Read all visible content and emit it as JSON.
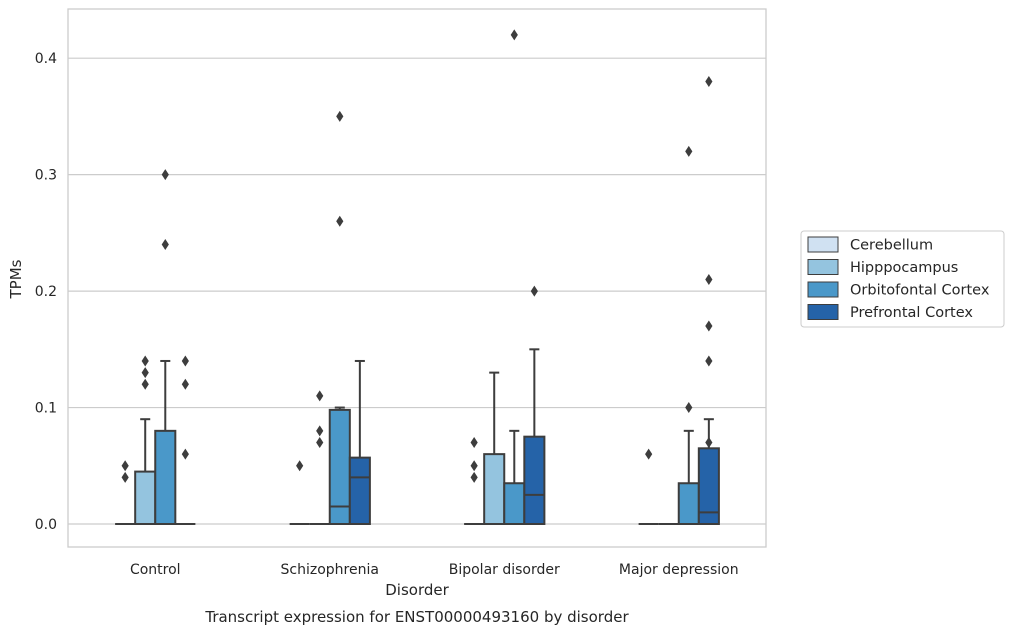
{
  "chart_data": {
    "type": "box",
    "title": "",
    "caption": "Transcript expression for ENST00000493160 by disorder",
    "xlabel": "Disorder",
    "ylabel": "TPMs",
    "ylim": [
      -0.02,
      0.442
    ],
    "yticks": [
      "0.0",
      "0.1",
      "0.2",
      "0.3",
      "0.4"
    ],
    "grid": "horizontal",
    "legend_position": "right",
    "categories": [
      "Control",
      "Schizophrenia",
      "Bipolar disorder",
      "Major depression"
    ],
    "series": [
      {
        "name": "Cerebellum",
        "color": "#d0e1f2",
        "boxes": [
          {
            "q1": 0,
            "median": 0,
            "q3": 0,
            "wlo": 0,
            "whi": 0,
            "outliers": [
              0.04,
              0.05
            ]
          },
          {
            "q1": 0,
            "median": 0,
            "q3": 0,
            "wlo": 0,
            "whi": 0,
            "outliers": [
              0.05
            ]
          },
          {
            "q1": 0,
            "median": 0,
            "q3": 0,
            "wlo": 0,
            "whi": 0,
            "outliers": [
              0.04,
              0.05,
              0.07
            ]
          },
          {
            "q1": 0,
            "median": 0,
            "q3": 0,
            "wlo": 0,
            "whi": 0,
            "outliers": [
              0.06
            ]
          }
        ]
      },
      {
        "name": "Hipppocampus",
        "color": "#94c4df",
        "boxes": [
          {
            "q1": 0,
            "median": 0,
            "q3": 0.045,
            "wlo": 0,
            "whi": 0.09,
            "outliers": [
              0.12,
              0.13,
              0.14
            ]
          },
          {
            "q1": 0,
            "median": 0,
            "q3": 0,
            "wlo": 0,
            "whi": 0,
            "outliers": [
              0.07,
              0.08,
              0.11
            ]
          },
          {
            "q1": 0,
            "median": 0,
            "q3": 0.06,
            "wlo": 0,
            "whi": 0.13,
            "outliers": []
          },
          {
            "q1": 0,
            "median": 0,
            "q3": 0,
            "wlo": 0,
            "whi": 0,
            "outliers": []
          }
        ]
      },
      {
        "name": "Orbitofontal Cortex",
        "color": "#4a98c9",
        "boxes": [
          {
            "q1": 0,
            "median": 0,
            "q3": 0.08,
            "wlo": 0,
            "whi": 0.14,
            "outliers": [
              0.24,
              0.3
            ]
          },
          {
            "q1": 0,
            "median": 0.015,
            "q3": 0.098,
            "wlo": 0,
            "whi": 0.1,
            "outliers": [
              0.26,
              0.35
            ]
          },
          {
            "q1": 0,
            "median": 0,
            "q3": 0.035,
            "wlo": 0,
            "whi": 0.08,
            "outliers": [
              0.42
            ]
          },
          {
            "q1": 0,
            "median": 0,
            "q3": 0.035,
            "wlo": 0,
            "whi": 0.08,
            "outliers": [
              0.1,
              0.32
            ]
          }
        ]
      },
      {
        "name": "Prefrontal Cortex",
        "color": "#2563a8",
        "boxes": [
          {
            "q1": 0,
            "median": 0,
            "q3": 0,
            "wlo": 0,
            "whi": 0,
            "outliers": [
              0.06,
              0.12,
              0.14
            ]
          },
          {
            "q1": 0,
            "median": 0.04,
            "q3": 0.057,
            "wlo": 0,
            "whi": 0.14,
            "outliers": []
          },
          {
            "q1": 0,
            "median": 0.025,
            "q3": 0.075,
            "wlo": 0,
            "whi": 0.15,
            "outliers": [
              0.2
            ]
          },
          {
            "q1": 0,
            "median": 0.01,
            "q3": 0.065,
            "wlo": 0,
            "whi": 0.09,
            "outliers": [
              0.07,
              0.14,
              0.17,
              0.21,
              0.38
            ]
          }
        ]
      }
    ]
  }
}
